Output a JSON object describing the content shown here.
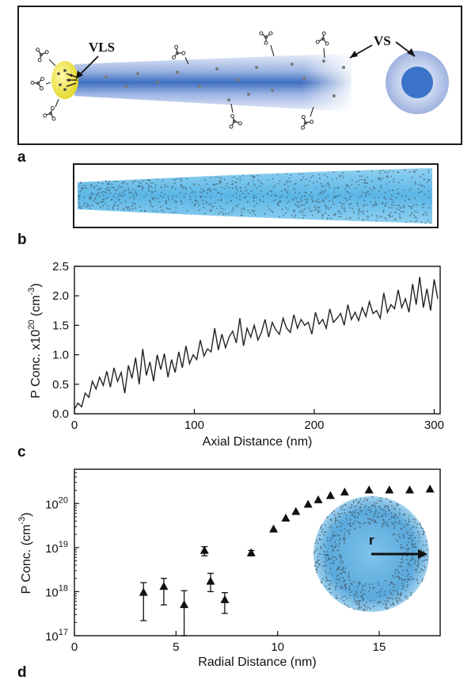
{
  "panels": {
    "a": {
      "letter": "a",
      "labels": {
        "vls": "VLS",
        "vs": "VS"
      },
      "colors": {
        "catalyst": "#f2e94a",
        "wire": "#3f6fc0",
        "shell": "#aebfe6",
        "core": "#3a73c8",
        "dopant": "#7f7f7f"
      }
    },
    "b": {
      "letter": "b",
      "colors": {
        "wire": "#5ab6e6",
        "atoms": "#3d4f5c"
      }
    },
    "c": {
      "letter": "c"
    },
    "d": {
      "letter": "d",
      "inset_label": "r"
    }
  },
  "chart_data": [
    {
      "id": "c",
      "type": "line",
      "xlabel": "Axial Distance (nm)",
      "ylabel": "P Conc. x10^20 (cm^-3)",
      "ylabel_parts": {
        "main": "P Conc. x10",
        "exp": "20",
        "unit_open": " (cm",
        "unit_exp": "-3",
        "unit_close": ")"
      },
      "xlim": [
        0,
        305
      ],
      "ylim": [
        0,
        2.5
      ],
      "xticks": [
        0,
        100,
        200,
        300
      ],
      "xtick_labels": [
        "0",
        "100",
        "200",
        "300"
      ],
      "yticks": [
        0.0,
        0.5,
        1.0,
        1.5,
        2.0,
        2.5
      ],
      "ytick_labels": [
        "0.0",
        "0.5",
        "1.0",
        "1.5",
        "2.0",
        "2.5"
      ],
      "grid": false,
      "series": [
        {
          "x": [
            0,
            3,
            6,
            9,
            12,
            15,
            18,
            21,
            24,
            27,
            30,
            33,
            36,
            39,
            42,
            45,
            48,
            51,
            54,
            57,
            60,
            63,
            66,
            69,
            72,
            75,
            78,
            81,
            84,
            87,
            90,
            93,
            96,
            99,
            102,
            105,
            108,
            111,
            114,
            117,
            120,
            123,
            126,
            129,
            132,
            135,
            138,
            141,
            144,
            147,
            150,
            153,
            156,
            159,
            162,
            165,
            168,
            171,
            174,
            177,
            180,
            183,
            186,
            189,
            192,
            195,
            198,
            201,
            204,
            207,
            210,
            213,
            216,
            219,
            222,
            225,
            228,
            231,
            234,
            237,
            240,
            243,
            246,
            249,
            252,
            255,
            258,
            261,
            264,
            267,
            270,
            273,
            276,
            279,
            282,
            285,
            288,
            291,
            294,
            297,
            300,
            303
          ],
          "y": [
            0.08,
            0.18,
            0.12,
            0.35,
            0.28,
            0.55,
            0.42,
            0.62,
            0.48,
            0.72,
            0.45,
            0.78,
            0.55,
            0.7,
            0.35,
            0.82,
            0.6,
            0.95,
            0.5,
            1.1,
            0.65,
            0.88,
            0.55,
            1.0,
            0.75,
            1.02,
            0.62,
            0.92,
            0.7,
            1.05,
            0.78,
            1.15,
            0.85,
            1.0,
            0.92,
            1.25,
            0.98,
            1.1,
            1.05,
            1.45,
            1.08,
            1.35,
            1.12,
            1.3,
            1.4,
            1.2,
            1.62,
            1.15,
            1.45,
            1.3,
            1.5,
            1.25,
            1.38,
            1.6,
            1.3,
            1.55,
            1.42,
            1.35,
            1.62,
            1.45,
            1.38,
            1.68,
            1.45,
            1.6,
            1.5,
            1.55,
            1.35,
            1.72,
            1.52,
            1.6,
            1.45,
            1.78,
            1.55,
            1.62,
            1.7,
            1.5,
            1.85,
            1.6,
            1.72,
            1.58,
            1.8,
            1.65,
            1.9,
            1.7,
            1.75,
            1.62,
            2.05,
            1.72,
            1.85,
            1.78,
            2.1,
            1.8,
            1.95,
            1.72,
            2.2,
            1.85,
            2.32,
            1.8,
            2.12,
            1.75,
            2.28,
            1.95
          ]
        }
      ]
    },
    {
      "id": "d",
      "type": "scatter",
      "xlabel": "Radial Distance (nm)",
      "ylabel": "P Conc. (cm^-3)",
      "ylabel_parts": {
        "main": "P Conc. (cm",
        "exp": "-3",
        "close": ")"
      },
      "yscale": "log",
      "xlim": [
        0,
        18
      ],
      "ylim": [
        1e+17,
        6e+20
      ],
      "xticks": [
        0,
        5,
        10,
        15
      ],
      "xtick_labels": [
        "0",
        "5",
        "10",
        "15"
      ],
      "yticks": [
        17,
        18,
        19,
        20
      ],
      "ytick_labels": [
        {
          "base": "10",
          "exp": "17"
        },
        {
          "base": "10",
          "exp": "18"
        },
        {
          "base": "10",
          "exp": "19"
        },
        {
          "base": "10",
          "exp": "20"
        }
      ],
      "grid": false,
      "marker": "triangle",
      "series": [
        {
          "x": [
            3.4,
            4.4,
            5.4,
            6.4,
            6.7,
            7.4,
            8.7,
            9.8,
            10.4,
            10.9,
            11.5,
            12.0,
            12.6,
            13.3,
            14.5,
            15.5,
            16.5,
            17.5
          ],
          "y": [
            9.5e+17,
            1.3e+18,
            5e+17,
            8.5e+18,
            1.7e+18,
            6.5e+17,
            7.5e+18,
            2.6e+19,
            4.6e+19,
            6.5e+19,
            9.5e+19,
            1.2e+20,
            1.5e+20,
            1.8e+20,
            2e+20,
            2e+20,
            2e+20,
            2.1e+20
          ],
          "yerr_low": [
            2.2e+17,
            5e+17,
            1e+17,
            6.5e+18,
            1e+18,
            3.2e+17,
            6.5e+18,
            null,
            null,
            null,
            null,
            null,
            null,
            null,
            null,
            null,
            null,
            null
          ],
          "yerr_high": [
            1.6e+18,
            2e+18,
            1.05e+18,
            1.05e+19,
            2.6e+18,
            9.5e+17,
            8.6e+18,
            null,
            null,
            null,
            null,
            null,
            null,
            null,
            null,
            null,
            null,
            null
          ]
        }
      ]
    }
  ]
}
